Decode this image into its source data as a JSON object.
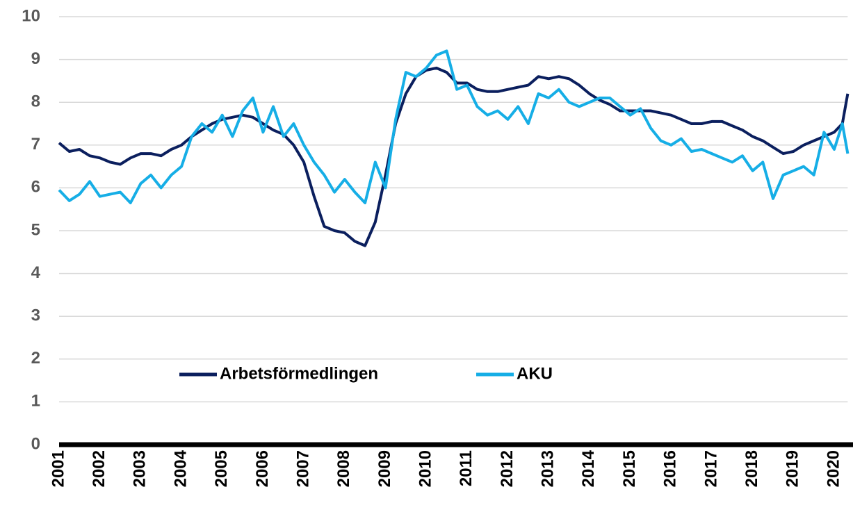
{
  "chart_data": {
    "type": "line",
    "x": [
      2001.0,
      2001.25,
      2001.5,
      2001.75,
      2002.0,
      2002.25,
      2002.5,
      2002.75,
      2003.0,
      2003.25,
      2003.5,
      2003.75,
      2004.0,
      2004.25,
      2004.5,
      2004.75,
      2005.0,
      2005.25,
      2005.5,
      2005.75,
      2006.0,
      2006.25,
      2006.5,
      2006.75,
      2007.0,
      2007.25,
      2007.5,
      2007.75,
      2008.0,
      2008.25,
      2008.5,
      2008.75,
      2009.0,
      2009.25,
      2009.5,
      2009.75,
      2010.0,
      2010.25,
      2010.5,
      2010.75,
      2011.0,
      2011.25,
      2011.5,
      2011.75,
      2012.0,
      2012.25,
      2012.5,
      2012.75,
      2013.0,
      2013.25,
      2013.5,
      2013.75,
      2014.0,
      2014.25,
      2014.5,
      2014.75,
      2015.0,
      2015.25,
      2015.5,
      2015.75,
      2016.0,
      2016.25,
      2016.5,
      2016.75,
      2017.0,
      2017.25,
      2017.5,
      2017.75,
      2018.0,
      2018.25,
      2018.5,
      2018.75,
      2019.0,
      2019.25,
      2019.5,
      2019.75,
      2020.0,
      2020.2,
      2020.33
    ],
    "series": [
      {
        "name": "Arbetsförmedlingen",
        "color": "#0b1f5e",
        "values": [
          7.05,
          6.85,
          6.9,
          6.75,
          6.7,
          6.6,
          6.55,
          6.7,
          6.8,
          6.8,
          6.75,
          6.9,
          7.0,
          7.2,
          7.35,
          7.5,
          7.6,
          7.65,
          7.7,
          7.65,
          7.5,
          7.35,
          7.25,
          7.0,
          6.6,
          5.8,
          5.1,
          5.0,
          4.95,
          4.75,
          4.65,
          5.2,
          6.3,
          7.5,
          8.2,
          8.6,
          8.75,
          8.8,
          8.7,
          8.45,
          8.45,
          8.3,
          8.25,
          8.25,
          8.3,
          8.35,
          8.4,
          8.6,
          8.55,
          8.6,
          8.55,
          8.4,
          8.2,
          8.05,
          7.95,
          7.8,
          7.8,
          7.8,
          7.8,
          7.75,
          7.7,
          7.6,
          7.5,
          7.5,
          7.55,
          7.55,
          7.45,
          7.35,
          7.2,
          7.1,
          6.95,
          6.8,
          6.85,
          7.0,
          7.1,
          7.2,
          7.3,
          7.5,
          8.2
        ]
      },
      {
        "name": "AKU",
        "color": "#16aee6",
        "values": [
          5.95,
          5.7,
          5.85,
          6.15,
          5.8,
          5.85,
          5.9,
          5.65,
          6.1,
          6.3,
          6.0,
          6.3,
          6.5,
          7.2,
          7.5,
          7.3,
          7.7,
          7.2,
          7.8,
          8.1,
          7.3,
          7.9,
          7.2,
          7.5,
          7.0,
          6.6,
          6.3,
          5.9,
          6.2,
          5.9,
          5.65,
          6.6,
          6.0,
          7.6,
          8.7,
          8.6,
          8.8,
          9.1,
          9.2,
          8.3,
          8.4,
          7.9,
          7.7,
          7.8,
          7.6,
          7.9,
          7.5,
          8.2,
          8.1,
          8.3,
          8.0,
          7.9,
          8.0,
          8.1,
          8.1,
          7.9,
          7.7,
          7.85,
          7.4,
          7.1,
          7.0,
          7.15,
          6.85,
          6.9,
          6.8,
          6.7,
          6.6,
          6.75,
          6.4,
          6.6,
          5.75,
          6.3,
          6.4,
          6.5,
          6.3,
          7.3,
          6.9,
          7.5,
          6.8
        ]
      }
    ],
    "xlim": [
      2001,
      2020.33
    ],
    "xticks": [
      2001,
      2002,
      2003,
      2004,
      2005,
      2006,
      2007,
      2008,
      2009,
      2010,
      2011,
      2012,
      2013,
      2014,
      2015,
      2016,
      2017,
      2018,
      2019,
      2020
    ],
    "ylim": [
      0,
      10
    ],
    "yticks": [
      0,
      1,
      2,
      3,
      4,
      5,
      6,
      7,
      8,
      9,
      10
    ],
    "grid": true
  }
}
